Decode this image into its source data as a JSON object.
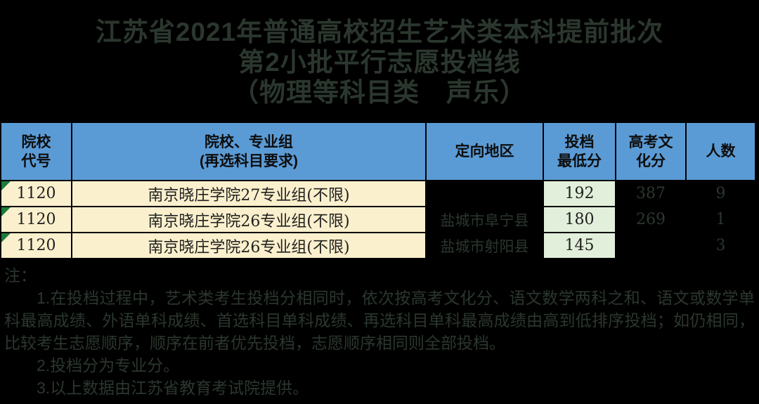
{
  "title": {
    "line1": "江苏省2021年普通高校招生艺术类本科提前批次",
    "line2": "第2小批平行志愿投档线",
    "line3": "（物理等科目类　声乐）"
  },
  "table": {
    "headers": [
      "院校\n代号",
      "院校、专业组\n(再选科目要求)",
      "定向地区",
      "投档\n最低分",
      "高考文\n化分",
      "人数"
    ],
    "rows": [
      {
        "code": "1120",
        "group": "南京晓庄学院27专业组(不限)",
        "region": "",
        "min_score": "192",
        "culture_score": "387",
        "count": "9"
      },
      {
        "code": "1120",
        "group": "南京晓庄学院26专业组(不限)",
        "region": "盐城市阜宁县",
        "min_score": "180",
        "culture_score": "269",
        "count": "1"
      },
      {
        "code": "1120",
        "group": "南京晓庄学院26专业组(不限)",
        "region": "盐城市射阳县",
        "min_score": "145",
        "culture_score": "",
        "count": "3"
      }
    ]
  },
  "notes": {
    "label": "注：",
    "items": [
      "1.在投档过程中，艺术类考生投档分相同时，依次按高考文化分、语文数学两科之和、语文或数学单科最高成绩、外语单科成绩、首选科目单科成绩、再选科目单科最高成绩由高到低排序投档；如仍相同，比较考生志愿顺序，顺序在前者优先投档，志愿顺序相同则全部投档。",
      "2.投档分为专业分。",
      "3.以上数据由江苏省教育考试院提供。"
    ]
  },
  "colors": {
    "page_bg": "#000000",
    "header_blue": "#5b9bd5",
    "cream_cell": "#fbf0cd",
    "green_cell": "#e2efda",
    "flag_green": "#1e7b3c",
    "dim_text": "#2b372e",
    "cell_text": "#1f1f1f"
  }
}
